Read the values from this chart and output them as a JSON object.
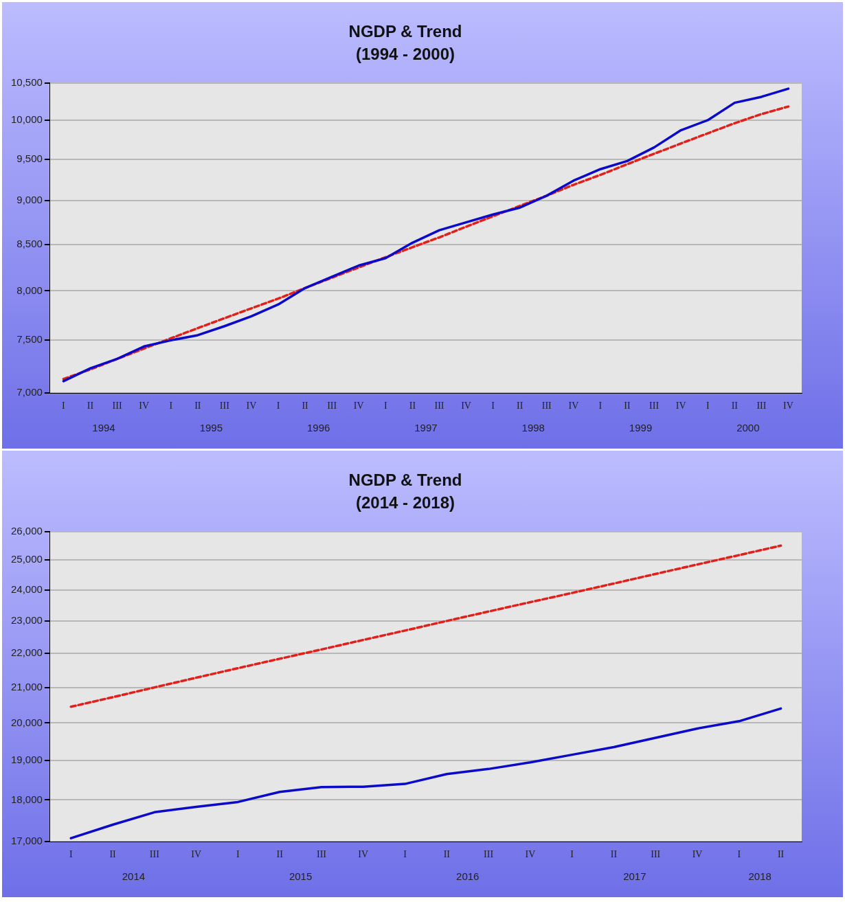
{
  "chart_data": [
    {
      "type": "line",
      "title": "NGDP & Trend",
      "subtitle": "(1994 - 2000)",
      "log": true,
      "grid": "y",
      "legend": false,
      "marker": "none",
      "categories": [
        "I",
        "II",
        "III",
        "IV",
        "I",
        "II",
        "III",
        "IV",
        "I",
        "II",
        "III",
        "IV",
        "I",
        "II",
        "III",
        "IV",
        "I",
        "II",
        "III",
        "IV",
        "I",
        "II",
        "III",
        "IV",
        "I",
        "II",
        "III",
        "IV"
      ],
      "annotations": [
        "1994",
        "1995",
        "1996",
        "1997",
        "1998",
        "1999",
        "2000"
      ],
      "ylim": [
        7000,
        10500
      ],
      "yticks": [
        {
          "value": 7000,
          "label": "7,000"
        },
        {
          "value": 7500,
          "label": "7,500"
        },
        {
          "value": 8000,
          "label": "8,000"
        },
        {
          "value": 8500,
          "label": "8,500"
        },
        {
          "value": 9000,
          "label": "9,000"
        },
        {
          "value": 9500,
          "label": "9,500"
        },
        {
          "value": 10000,
          "label": "10,000"
        },
        {
          "value": 10500,
          "label": "10,500"
        }
      ],
      "series": [
        {
          "color": "#0a0ac8",
          "line_style": "solid",
          "values": [
            7110,
            7230,
            7320,
            7440,
            7500,
            7550,
            7640,
            7740,
            7860,
            8030,
            8150,
            8270,
            8350,
            8520,
            8660,
            8750,
            8840,
            8920,
            9060,
            9240,
            9380,
            9480,
            9650,
            9870,
            10000,
            10230,
            10310,
            10420
          ]
        },
        {
          "color": "#e0201b",
          "line_style": "dashed",
          "values": [
            7130,
            7220,
            7320,
            7420,
            7520,
            7620,
            7720,
            7820,
            7920,
            8030,
            8140,
            8250,
            8360,
            8470,
            8580,
            8700,
            8820,
            8940,
            9060,
            9190,
            9310,
            9440,
            9570,
            9700,
            9830,
            9960,
            10080,
            10180
          ]
        }
      ]
    },
    {
      "type": "line",
      "title": "NGDP & Trend",
      "subtitle": "(2014 - 2018)",
      "log": true,
      "grid": "y",
      "legend": false,
      "marker": "none",
      "categories": [
        "I",
        "II",
        "III",
        "IV",
        "I",
        "II",
        "III",
        "IV",
        "I",
        "II",
        "III",
        "IV",
        "I",
        "II",
        "III",
        "IV",
        "I",
        "II"
      ],
      "annotations": [
        "2014",
        "2015",
        "2016",
        "2017",
        "2018"
      ],
      "ylim": [
        17000,
        26000
      ],
      "yticks": [
        {
          "value": 17000,
          "label": "17,000"
        },
        {
          "value": 18000,
          "label": "18,000"
        },
        {
          "value": 19000,
          "label": "19,000"
        },
        {
          "value": 20000,
          "label": "20,000"
        },
        {
          "value": 21000,
          "label": "21,000"
        },
        {
          "value": 22000,
          "label": "22,000"
        },
        {
          "value": 23000,
          "label": "23,000"
        },
        {
          "value": 24000,
          "label": "24,000"
        },
        {
          "value": 25000,
          "label": "25,000"
        },
        {
          "value": 26000,
          "label": "26,000"
        }
      ],
      "series": [
        {
          "color": "#0a0ac8",
          "line_style": "solid",
          "values": [
            17080,
            17400,
            17700,
            17830,
            17950,
            18200,
            18320,
            18330,
            18400,
            18650,
            18780,
            18950,
            19150,
            19350,
            19600,
            19850,
            20050,
            20400
          ]
        },
        {
          "color": "#e0201b",
          "line_style": "dashed",
          "values": [
            20450,
            20720,
            21000,
            21280,
            21560,
            21840,
            22120,
            22410,
            22700,
            23000,
            23300,
            23600,
            23900,
            24210,
            24530,
            24850,
            25170,
            25500
          ]
        }
      ]
    }
  ]
}
